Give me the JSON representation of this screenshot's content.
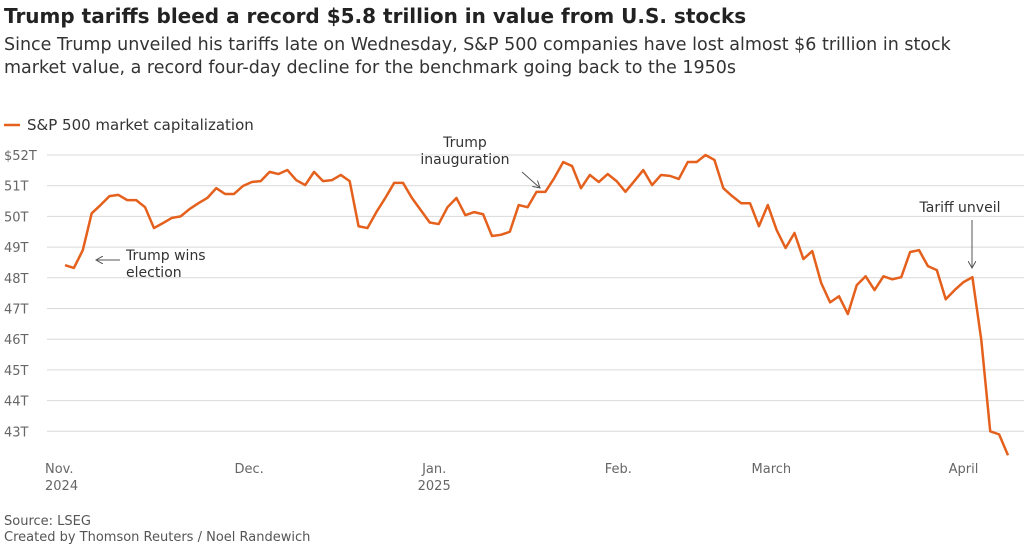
{
  "chart_data": {
    "type": "line",
    "title": "Trump tariffs bleed a record $5.8 trillion in value from U.S. stocks",
    "subtitle": "Since Trump unveiled his tariffs late on Wednesday, S&P 500 companies have lost almost $6 trillion in stock market value, a record four-day decline for the benchmark going back to the 1950s",
    "source": "Source: LSEG",
    "credit": "Created by Thomson Reuters / Noel Randewich",
    "series": [
      {
        "name": "S&P 500 market capitalization",
        "color": "#e4601c",
        "values": [
          48.41,
          48.32,
          48.9,
          50.1,
          50.37,
          50.66,
          50.7,
          50.53,
          50.53,
          50.3,
          49.62,
          49.78,
          49.95,
          50.0,
          50.24,
          50.43,
          50.6,
          50.92,
          50.73,
          50.73,
          50.99,
          51.12,
          51.15,
          51.45,
          51.38,
          51.51,
          51.18,
          51.02,
          51.45,
          51.15,
          51.18,
          51.35,
          51.15,
          49.68,
          49.62,
          50.14,
          50.6,
          51.09,
          51.09,
          50.6,
          50.2,
          49.8,
          49.75,
          50.3,
          50.6,
          50.04,
          50.14,
          50.07,
          49.36,
          49.4,
          49.5,
          50.37,
          50.3,
          50.8,
          50.8,
          51.25,
          51.77,
          51.64,
          50.92,
          51.35,
          51.12,
          51.38,
          51.15,
          50.8,
          51.15,
          51.51,
          51.02,
          51.35,
          51.32,
          51.22,
          51.77,
          51.77,
          52.0,
          51.84,
          50.92,
          50.66,
          50.43,
          50.43,
          49.68,
          50.37,
          49.55,
          48.97,
          49.46,
          48.61,
          48.87,
          47.83,
          47.2,
          47.4,
          46.82,
          47.76,
          48.05,
          47.6,
          48.05,
          47.95,
          48.02,
          48.84,
          48.9,
          48.38,
          48.25,
          47.3,
          47.6,
          47.86,
          48.02,
          45.97,
          43.0,
          42.9,
          42.22
        ]
      }
    ],
    "xlim": [
      0,
      106
    ],
    "xticks": [
      {
        "value": 0,
        "label": [
          "Nov.",
          "2024"
        ]
      },
      {
        "value": 20.7,
        "label": [
          "Dec."
        ]
      },
      {
        "value": 41.5,
        "label": [
          "Jan.",
          "2025"
        ]
      },
      {
        "value": 62.2,
        "label": [
          "Feb."
        ]
      },
      {
        "value": 79.4,
        "label": [
          "March"
        ]
      },
      {
        "value": 101,
        "label": [
          "April"
        ]
      }
    ],
    "ylim": [
      42,
      52
    ],
    "yticks": [
      {
        "value": 52,
        "label": "$52T"
      },
      {
        "value": 51,
        "label": "51T"
      },
      {
        "value": 50,
        "label": "50T"
      },
      {
        "value": 49,
        "label": "49T"
      },
      {
        "value": 48,
        "label": "48T"
      },
      {
        "value": 47,
        "label": "47T"
      },
      {
        "value": 46,
        "label": "46T"
      },
      {
        "value": 45,
        "label": "45T"
      },
      {
        "value": 44,
        "label": "44T"
      },
      {
        "value": 43,
        "label": "43T"
      }
    ],
    "grid": true,
    "annotations": [
      {
        "text": [
          "Trump wins",
          "election"
        ]
      },
      {
        "text": [
          "Trump",
          "inauguration"
        ]
      },
      {
        "text": [
          "Tariff unveil"
        ]
      }
    ]
  }
}
